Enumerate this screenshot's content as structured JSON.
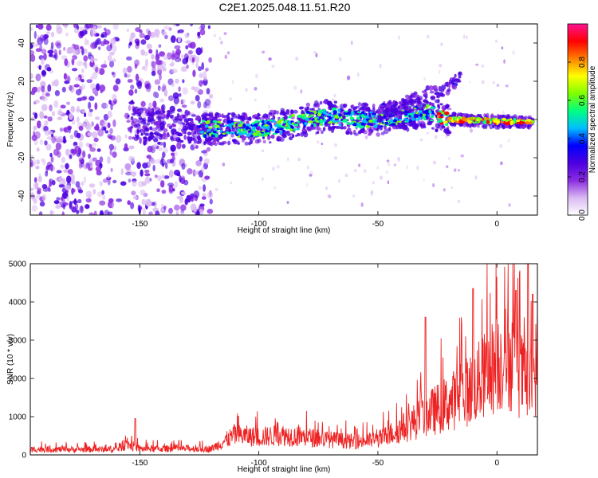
{
  "title": "C2E1.2025.048.11.51.R20",
  "chart_data": [
    {
      "type": "heatmap",
      "xlabel": "Height of straight line (km)",
      "ylabel": "Frequency (Hz)",
      "xlim": [
        -196,
        17
      ],
      "ylim": [
        -50,
        50
      ],
      "x_ticks": [
        -150,
        -100,
        -50,
        0
      ],
      "y_ticks": [
        -40,
        -20,
        0,
        20,
        40
      ],
      "colorbar": {
        "label": "Normalized spectral amplitude",
        "range": [
          0.0,
          1.0
        ],
        "ticks": [
          0.0,
          0.2,
          0.4,
          0.6,
          0.8
        ],
        "colors": [
          "#ffffff",
          "#d9b8f2",
          "#8a2be2",
          "#4b00e0",
          "#0000ff",
          "#00bfff",
          "#00ff80",
          "#80ff00",
          "#ffff00",
          "#ff8000",
          "#ff0000",
          "#ff1493"
        ]
      },
      "ridge": {
        "x": [
          -155,
          -140,
          -120,
          -100,
          -90,
          -80,
          -70,
          -60,
          -50,
          -40,
          -30,
          -20,
          0,
          15
        ],
        "freq": [
          -2,
          -3,
          -5,
          -5,
          -3,
          0,
          2,
          0,
          0,
          2,
          4,
          0,
          -1,
          -1
        ]
      },
      "branch": {
        "x": [
          -50,
          -40,
          -30,
          -22,
          -15
        ],
        "freq": [
          3,
          7,
          12,
          17,
          22
        ]
      },
      "noise_region": [
        -196,
        -120
      ]
    },
    {
      "type": "line",
      "xlabel": "Height of straight line (km)",
      "ylabel": "SNR (10 * v/v)",
      "xlim": [
        -196,
        17
      ],
      "ylim": [
        0,
        5000
      ],
      "x_ticks": [
        -150,
        -100,
        -50,
        0
      ],
      "y_ticks": [
        0,
        1000,
        2000,
        3000,
        4000,
        5000
      ],
      "color": "#ee2222",
      "envelope": {
        "x": [
          -196,
          -160,
          -155,
          -150,
          -120,
          -110,
          -100,
          -90,
          -80,
          -70,
          -60,
          -50,
          -40,
          -30,
          -20,
          -10,
          0,
          5,
          10,
          15,
          17
        ],
        "y": [
          180,
          180,
          350,
          200,
          200,
          650,
          580,
          650,
          580,
          500,
          430,
          500,
          850,
          1300,
          1700,
          2200,
          3000,
          3200,
          2600,
          2200,
          3200
        ]
      },
      "peaks": [
        {
          "x": -152,
          "y": 950
        },
        {
          "x": -30,
          "y": 3600
        },
        {
          "x": -10,
          "y": 4350
        },
        {
          "x": 8,
          "y": 4300
        },
        {
          "x": 13,
          "y": 5000
        },
        {
          "x": 15,
          "y": 4200
        }
      ]
    }
  ]
}
